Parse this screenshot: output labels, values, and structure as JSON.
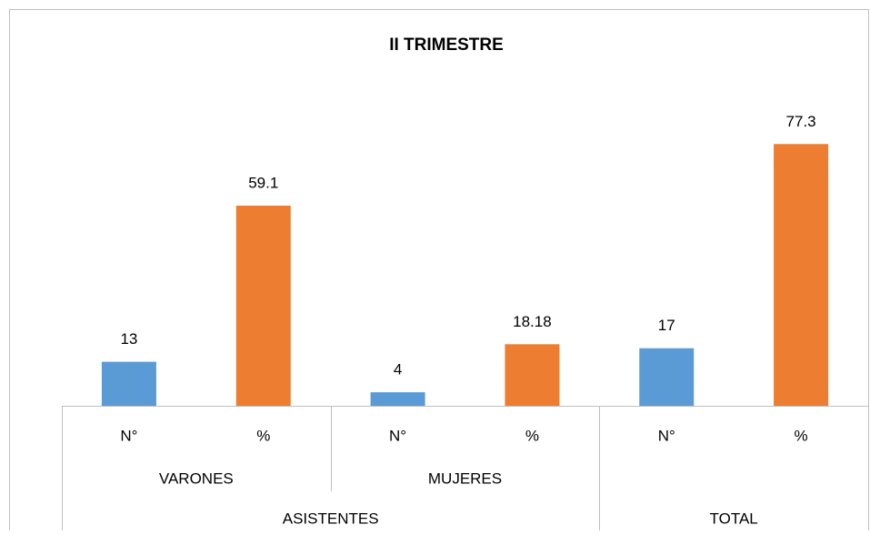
{
  "chart_data": {
    "type": "bar",
    "title": "II TRIMESTRE",
    "categories": [
      "N°",
      "%",
      "N°",
      "%",
      "N°",
      "%"
    ],
    "values": [
      13,
      59.1,
      4,
      18.18,
      17,
      77.3
    ],
    "colors": [
      "#5b9bd5",
      "#ed7d31",
      "#5b9bd5",
      "#ed7d31",
      "#5b9bd5",
      "#ed7d31"
    ],
    "subgroups": [
      {
        "name": "VARONES",
        "span": 2
      },
      {
        "name": "MUJERES",
        "span": 2
      },
      {
        "name": null,
        "span": 2
      }
    ],
    "groups": [
      {
        "name": "ASISTENTES",
        "span": 4
      },
      {
        "name": "TOTAL",
        "span": 2
      }
    ],
    "ylim": [
      0,
      90
    ]
  }
}
